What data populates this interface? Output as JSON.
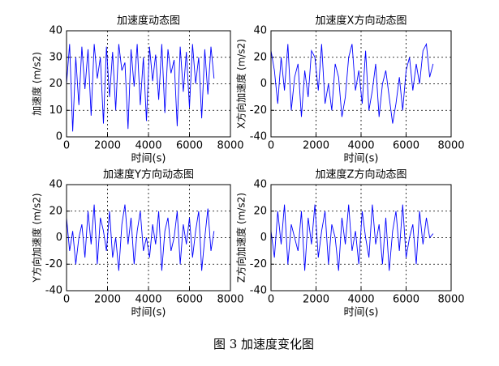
{
  "chart_data": [
    {
      "type": "line",
      "title": "加速度动态图",
      "xlabel": "时间(s)",
      "ylabel": "加速度 (m/s2)",
      "color": "#0000ff",
      "grid": true,
      "xlim": [
        0,
        8000
      ],
      "xticks": [
        0,
        2000,
        4000,
        6000,
        8000
      ],
      "ylim": [
        0,
        40
      ],
      "yticks": [
        0,
        10,
        20,
        30,
        40
      ],
      "x": [
        0,
        150,
        300,
        450,
        600,
        750,
        900,
        1050,
        1200,
        1350,
        1500,
        1650,
        1800,
        1950,
        2100,
        2250,
        2400,
        2550,
        2700,
        2850,
        3000,
        3150,
        3300,
        3450,
        3600,
        3750,
        3900,
        4050,
        4200,
        4350,
        4500,
        4650,
        4800,
        4950,
        5100,
        5250,
        5400,
        5550,
        5700,
        5850,
        6000,
        6150,
        6300,
        6450,
        6600,
        6750,
        6900,
        7050,
        7200
      ],
      "values": [
        20,
        35,
        2,
        30,
        12,
        34,
        18,
        33,
        8,
        35,
        22,
        30,
        5,
        34,
        15,
        32,
        10,
        35,
        25,
        28,
        3,
        33,
        19,
        35,
        12,
        30,
        6,
        34,
        21,
        31,
        14,
        35,
        9,
        33,
        24,
        29,
        4,
        34,
        17,
        32,
        11,
        35,
        20,
        30,
        7,
        33,
        16,
        34,
        22
      ]
    },
    {
      "type": "line",
      "title": "加速度X方向动态图",
      "xlabel": "时间(s)",
      "ylabel": "X方向加速度 (m/s2)",
      "color": "#0000ff",
      "grid": true,
      "xlim": [
        0,
        8000
      ],
      "xticks": [
        0,
        2000,
        4000,
        6000,
        8000
      ],
      "ylim": [
        -40,
        40
      ],
      "yticks": [
        -40,
        -20,
        0,
        20,
        40
      ],
      "x": [
        0,
        150,
        300,
        450,
        600,
        750,
        900,
        1050,
        1200,
        1350,
        1500,
        1650,
        1800,
        1950,
        2100,
        2250,
        2400,
        2550,
        2700,
        2850,
        3000,
        3150,
        3300,
        3450,
        3600,
        3750,
        3900,
        4050,
        4200,
        4350,
        4500,
        4650,
        4800,
        4950,
        5100,
        5250,
        5400,
        5550,
        5700,
        5850,
        6000,
        6150,
        6300,
        6450,
        6600,
        6750,
        6900,
        7050,
        7200
      ],
      "values": [
        25,
        10,
        -15,
        20,
        -5,
        30,
        -20,
        5,
        15,
        -25,
        10,
        -10,
        25,
        20,
        -5,
        30,
        -15,
        0,
        -20,
        15,
        5,
        -25,
        -10,
        20,
        30,
        -5,
        10,
        -15,
        25,
        -20,
        -5,
        15,
        -25,
        0,
        10,
        -10,
        -30,
        -15,
        5,
        -20,
        10,
        20,
        -5,
        15,
        0,
        25,
        30,
        5,
        15
      ]
    },
    {
      "type": "line",
      "title": "加速度Y方向动态图",
      "xlabel": "时间(s)",
      "ylabel": "Y方向加速度 (m/s2)",
      "color": "#0000ff",
      "grid": true,
      "xlim": [
        0,
        8000
      ],
      "xticks": [
        0,
        2000,
        4000,
        6000,
        8000
      ],
      "ylim": [
        -40,
        40
      ],
      "yticks": [
        -40,
        -20,
        0,
        20,
        40
      ],
      "x": [
        0,
        150,
        300,
        450,
        600,
        750,
        900,
        1050,
        1200,
        1350,
        1500,
        1650,
        1800,
        1950,
        2100,
        2250,
        2400,
        2550,
        2700,
        2850,
        3000,
        3150,
        3300,
        3450,
        3600,
        3750,
        3900,
        4050,
        4200,
        4350,
        4500,
        4650,
        4800,
        4950,
        5100,
        5250,
        5400,
        5550,
        5700,
        5850,
        6000,
        6150,
        6300,
        6450,
        6600,
        6750,
        6900,
        7050,
        7200
      ],
      "values": [
        15,
        -10,
        5,
        -20,
        0,
        10,
        -15,
        20,
        -5,
        25,
        -20,
        15,
        5,
        -10,
        20,
        -15,
        0,
        -25,
        10,
        25,
        -5,
        15,
        -20,
        5,
        20,
        -10,
        0,
        -15,
        10,
        -5,
        20,
        -25,
        5,
        15,
        -10,
        0,
        20,
        -20,
        10,
        -5,
        15,
        -15,
        5,
        20,
        -25,
        0,
        22,
        -10,
        5
      ]
    },
    {
      "type": "line",
      "title": "加速度Z方向动态图",
      "xlabel": "时间(s)",
      "ylabel": "Z方向加速度 (m/s2)",
      "color": "#0000ff",
      "grid": true,
      "xlim": [
        0,
        8000
      ],
      "xticks": [
        0,
        2000,
        4000,
        6000,
        8000
      ],
      "ylim": [
        -40,
        40
      ],
      "yticks": [
        -40,
        -20,
        0,
        20,
        40
      ],
      "x": [
        0,
        150,
        300,
        450,
        600,
        750,
        900,
        1050,
        1200,
        1350,
        1500,
        1650,
        1800,
        1950,
        2100,
        2250,
        2400,
        2550,
        2700,
        2850,
        3000,
        3150,
        3300,
        3450,
        3600,
        3750,
        3900,
        4050,
        4200,
        4350,
        4500,
        4650,
        4800,
        4950,
        5100,
        5250,
        5400,
        5550,
        5700,
        5850,
        6000,
        6150,
        6300,
        6450,
        6600,
        6750,
        6900,
        7050,
        7200
      ],
      "values": [
        5,
        -15,
        20,
        -5,
        25,
        -20,
        10,
        0,
        -10,
        20,
        -25,
        15,
        -5,
        25,
        -15,
        5,
        20,
        -20,
        10,
        0,
        -25,
        15,
        -5,
        25,
        -10,
        5,
        -20,
        20,
        0,
        -15,
        25,
        -5,
        10,
        -20,
        15,
        -25,
        5,
        20,
        -10,
        25,
        -15,
        0,
        10,
        -20,
        20,
        -5,
        15,
        0,
        3
      ]
    }
  ],
  "caption": "图 3  加速度变化图"
}
